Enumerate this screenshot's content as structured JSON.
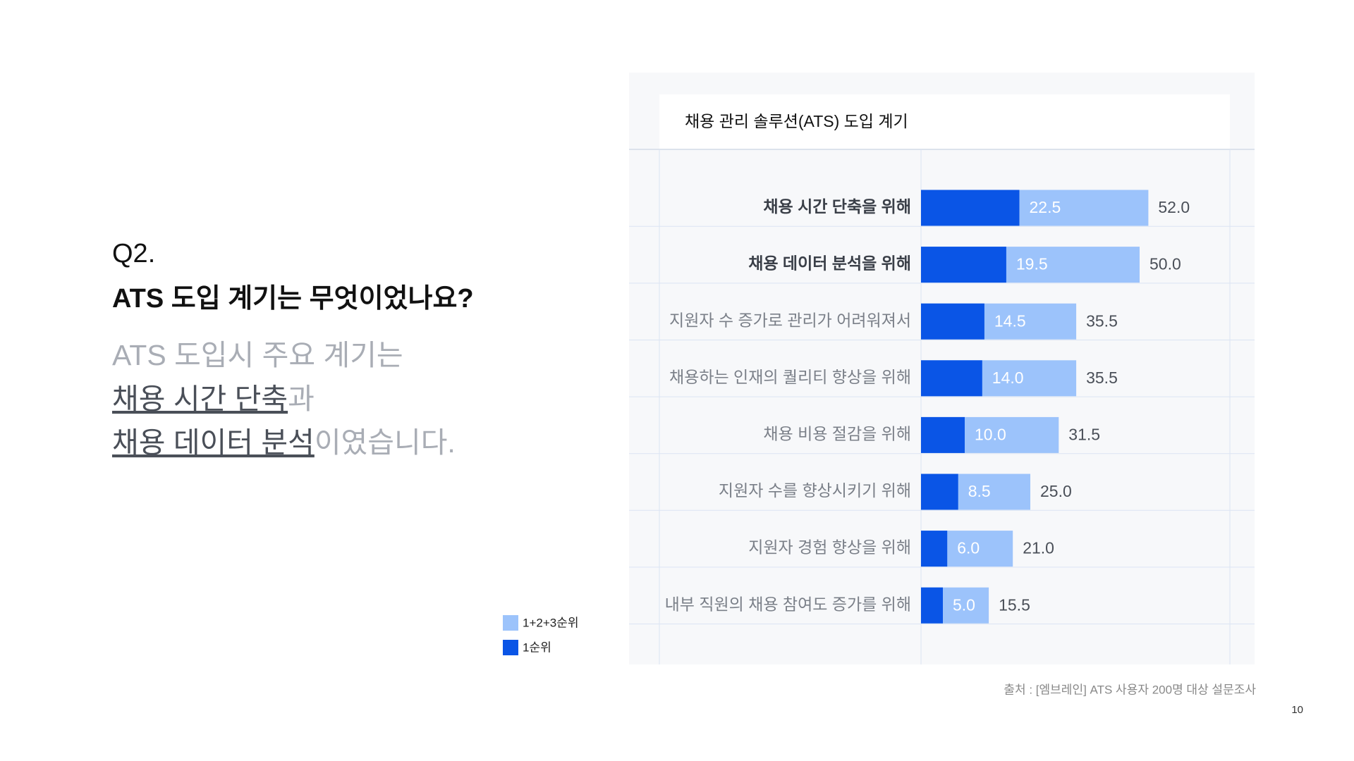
{
  "slide": {
    "question": [
      "Q2.",
      "ATS 도입 계기는 무엇이었나요?"
    ],
    "answer": [
      [
        {
          "text": "ATS 도입시 주요 계기는",
          "emphasis": false
        }
      ],
      [
        {
          "text": "채용 시간 단축",
          "emphasis": true
        },
        {
          "text": "과",
          "emphasis": false
        }
      ],
      [
        {
          "text": "채용 데이터 분석",
          "emphasis": true
        },
        {
          "text": "이였습니다.",
          "emphasis": false
        }
      ]
    ],
    "source": "출처 : [엠브레인] ATS 사용자 200명 대상 설문조사",
    "page_number": "10"
  },
  "chart_data": {
    "type": "hbar-overlap",
    "title": "채용 관리 솔루션(ATS) 도입 계기",
    "categories": [
      "채용 시간 단축을 위해",
      "채용 데이터 분석을 위해",
      "지원자 수 증가로 관리가 어려워져서",
      "채용하는 인재의 퀄리티 향상을 위해",
      "채용 비용 절감을 위해",
      "지원자 수를 향상시키기 위해",
      "지원자 경험 향상을 위해",
      "내부 직원의 채용 참여도 증가를 위해"
    ],
    "series": [
      {
        "name": "1+2+3순위",
        "color": "#9cc3fb",
        "values": [
          52.0,
          50.0,
          35.5,
          35.5,
          31.5,
          25.0,
          21.0,
          15.5
        ],
        "value_labels": [
          "52.0",
          "50.0",
          "35.5",
          "35.5",
          "31.5",
          "25.0",
          "21.0",
          "15.5"
        ]
      },
      {
        "name": "1순위",
        "color": "#0a55e6",
        "values": [
          22.5,
          19.5,
          14.5,
          14.0,
          10.0,
          8.5,
          6.0,
          5.0
        ],
        "value_labels": [
          "22.5",
          "19.5",
          "14.5",
          "14.0",
          "10.0",
          "8.5",
          "6.0",
          "5.0"
        ]
      }
    ]
  }
}
